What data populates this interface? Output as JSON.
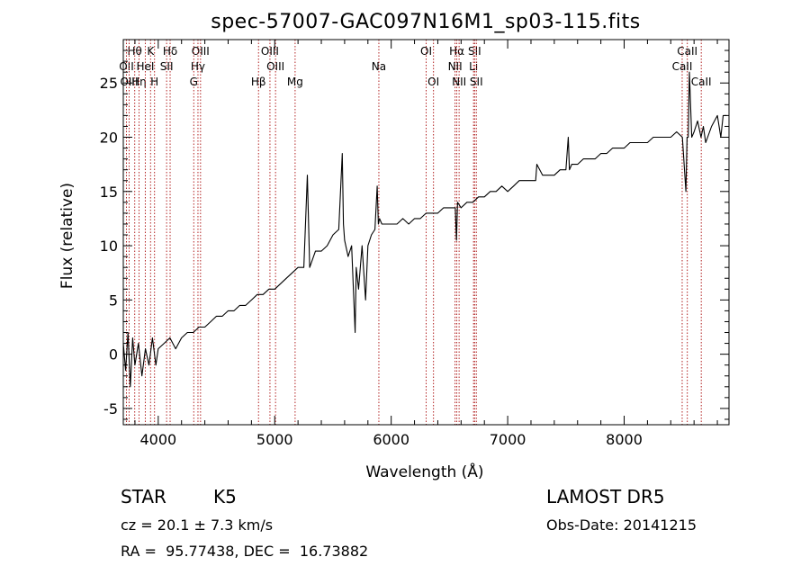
{
  "chart_data": {
    "type": "line",
    "title": "spec-57007-GAC097N16M1_sp03-115.fits",
    "xlabel": "Wavelength (Å)",
    "ylabel": "Flux (relative)",
    "xlim": [
      3700,
      8900
    ],
    "ylim": [
      -6.5,
      29
    ],
    "x_ticks": [
      4000,
      5000,
      6000,
      7000,
      8000
    ],
    "y_ticks": [
      -5,
      0,
      5,
      10,
      15,
      20,
      25
    ],
    "grid": false,
    "line_color": "#000000",
    "marker_color": "#b22222",
    "series": [
      {
        "x": [
          3700,
          3720,
          3740,
          3760,
          3780,
          3800,
          3830,
          3860,
          3890,
          3920,
          3950,
          3980,
          4000,
          4050,
          4100,
          4150,
          4200,
          4250,
          4300,
          4350,
          4400,
          4450,
          4500,
          4550,
          4600,
          4650,
          4700,
          4750,
          4800,
          4850,
          4900,
          4950,
          5000,
          5050,
          5100,
          5150,
          5200,
          5250,
          5280,
          5300,
          5350,
          5400,
          5450,
          5500,
          5550,
          5580,
          5590,
          5600,
          5630,
          5660,
          5690,
          5700,
          5720,
          5750,
          5780,
          5800,
          5830,
          5860,
          5880,
          5890,
          5900,
          5920,
          5950,
          6000,
          6050,
          6100,
          6150,
          6200,
          6250,
          6300,
          6350,
          6400,
          6450,
          6500,
          6550,
          6560,
          6570,
          6600,
          6650,
          6700,
          6750,
          6800,
          6850,
          6900,
          6950,
          7000,
          7050,
          7100,
          7150,
          7200,
          7240,
          7250,
          7300,
          7350,
          7400,
          7450,
          7500,
          7520,
          7530,
          7550,
          7600,
          7650,
          7700,
          7750,
          7800,
          7850,
          7900,
          7950,
          8000,
          8050,
          8100,
          8150,
          8200,
          8250,
          8300,
          8350,
          8400,
          8450,
          8500,
          8530,
          8540,
          8550,
          8560,
          8580,
          8600,
          8630,
          8660,
          8680,
          8700,
          8750,
          8800,
          8830,
          8850,
          8880
        ],
        "y": [
          1,
          -1.5,
          2,
          -3,
          1.5,
          -1,
          1,
          -2,
          0.5,
          -1,
          1.5,
          -1,
          0.5,
          1,
          1.5,
          0.5,
          1.5,
          2,
          2,
          2.5,
          2.5,
          3,
          3.5,
          3.5,
          4,
          4,
          4.5,
          4.5,
          5,
          5.5,
          5.5,
          6,
          6,
          6.5,
          7,
          7.5,
          8,
          8,
          16.5,
          8,
          9.5,
          9.5,
          10,
          11,
          11.5,
          18.5,
          12,
          10.5,
          9,
          10,
          2,
          8,
          6,
          10,
          5,
          10,
          11,
          11.5,
          15.5,
          12,
          12.5,
          12,
          12,
          12,
          12,
          12.5,
          12,
          12.5,
          12.5,
          13,
          13,
          13,
          13.5,
          13.5,
          13.5,
          10.5,
          14,
          13.5,
          14,
          14,
          14.5,
          14.5,
          15,
          15,
          15.5,
          15,
          15.5,
          16,
          16,
          16,
          16,
          17.5,
          16.5,
          16.5,
          16.5,
          17,
          17,
          20,
          17,
          17.5,
          17.5,
          18,
          18,
          18,
          18.5,
          18.5,
          19,
          19,
          19,
          19.5,
          19.5,
          19.5,
          19.5,
          20,
          20,
          20,
          20,
          20.5,
          20,
          15,
          20,
          20,
          26,
          20,
          20.5,
          21.5,
          20,
          21,
          19.5,
          21,
          22,
          20,
          22,
          22
        ]
      }
    ],
    "line_markers": [
      {
        "label": "Hθ",
        "wave": 3798,
        "row": 1
      },
      {
        "label": "OII",
        "wave": 3727,
        "row": 2
      },
      {
        "label": "OIII",
        "wave": 3750,
        "row": 3
      },
      {
        "label": "Hη",
        "wave": 3835,
        "row": 3
      },
      {
        "label": "K",
        "wave": 3934,
        "row": 1
      },
      {
        "label": "HeI",
        "wave": 3889,
        "row": 2
      },
      {
        "label": "H",
        "wave": 3968,
        "row": 3
      },
      {
        "label": "Hδ",
        "wave": 4102,
        "row": 1
      },
      {
        "label": "SII",
        "wave": 4072,
        "row": 2
      },
      {
        "label": "OIII",
        "wave": 4363,
        "row": 1
      },
      {
        "label": "Hγ",
        "wave": 4341,
        "row": 2
      },
      {
        "label": "G",
        "wave": 4305,
        "row": 3
      },
      {
        "label": "OIII",
        "wave": 4959,
        "row": 1
      },
      {
        "label": "OIII",
        "wave": 5007,
        "row": 2
      },
      {
        "label": "Hβ",
        "wave": 4861,
        "row": 3
      },
      {
        "label": "Mg",
        "wave": 5175,
        "row": 3
      },
      {
        "label": "Na",
        "wave": 5894,
        "row": 2
      },
      {
        "label": "OI",
        "wave": 6300,
        "row": 1
      },
      {
        "label": "OI",
        "wave": 6363,
        "row": 3
      },
      {
        "label": "Hα",
        "wave": 6563,
        "row": 1
      },
      {
        "label": "SII",
        "wave": 6716,
        "row": 1
      },
      {
        "label": "NII",
        "wave": 6548,
        "row": 2
      },
      {
        "label": "Li",
        "wave": 6707,
        "row": 2
      },
      {
        "label": "NII",
        "wave": 6583,
        "row": 3
      },
      {
        "label": "SII",
        "wave": 6731,
        "row": 3
      },
      {
        "label": "CaII",
        "wave": 8542,
        "row": 1
      },
      {
        "label": "CaII",
        "wave": 8498,
        "row": 2
      },
      {
        "label": "CaII",
        "wave": 8662,
        "row": 3
      }
    ]
  },
  "info": {
    "object_type": "STAR",
    "subclass": "K5",
    "survey": "LAMOST DR5",
    "cz": "cz = 20.1 ± 7.3 km/s",
    "obs_date": "Obs-Date: 20141215",
    "coords": "RA =  95.77438, DEC =  16.73882"
  }
}
